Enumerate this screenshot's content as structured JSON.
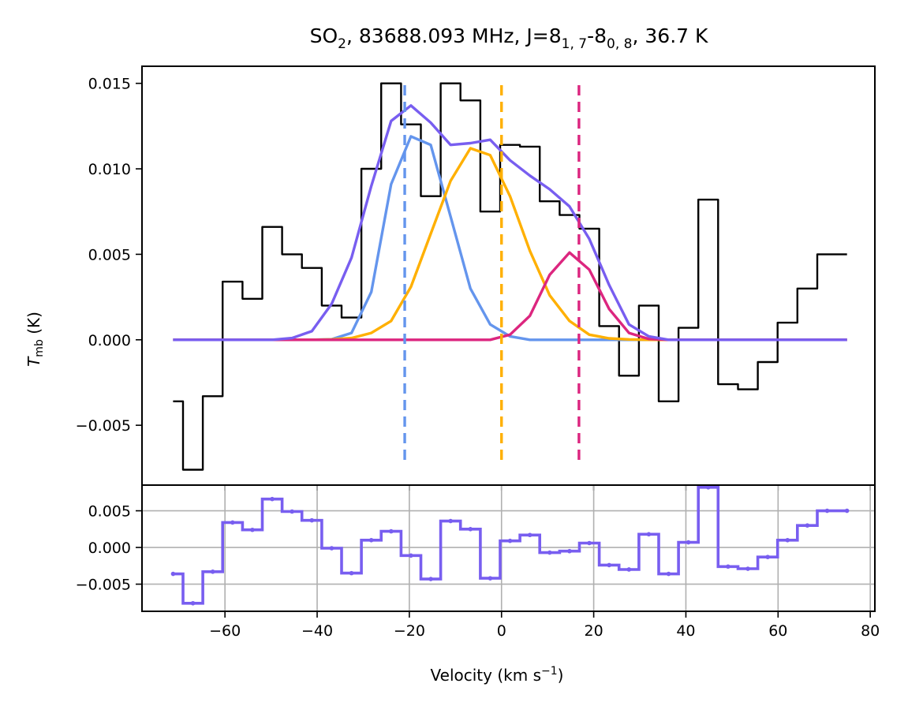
{
  "chart_data": [
    {
      "panel": "spectrum",
      "type": "line",
      "title": {
        "species": "SO",
        "species_sub": "2",
        "rest": ", 83688.093 MHz, J=8",
        "upper_sub": "1, 7",
        "dash": "-8",
        "lower_sub": "0, 8",
        "temperature": ", 36.7 K"
      },
      "ylabel": {
        "main": "T",
        "sub": "mb",
        "unit": " (K)"
      },
      "xlim": [
        -78,
        81
      ],
      "ylim": [
        -0.0085,
        0.016
      ],
      "x_ticks": [
        -60,
        -40,
        -20,
        0,
        20,
        40,
        60,
        80
      ],
      "y_ticks": [
        -0.005,
        0.0,
        0.005,
        0.01,
        0.015
      ],
      "y_tick_labels": [
        "−0.005",
        "0.000",
        "0.005",
        "0.010",
        "0.015"
      ],
      "grid": false,
      "velocity": [
        -71.25,
        -66.95,
        -62.65,
        -58.35,
        -54.05,
        -49.75,
        -45.45,
        -41.15,
        -36.85,
        -32.55,
        -28.25,
        -23.95,
        -19.65,
        -15.35,
        -11.05,
        -6.75,
        -2.45,
        1.85,
        6.15,
        10.45,
        14.75,
        19.05,
        23.35,
        27.65,
        31.95,
        36.25,
        40.55,
        44.85,
        49.15,
        53.45,
        57.75,
        62.05,
        66.35,
        70.65,
        74.95
      ],
      "series": [
        {
          "name": "observed spectrum",
          "style": "steps",
          "color": "#000000",
          "values": [
            -0.0036,
            -0.0076,
            -0.0033,
            0.0034,
            0.0024,
            0.0066,
            0.005,
            0.0042,
            0.002,
            0.0013,
            0.01,
            0.015,
            0.0126,
            0.0084,
            0.015,
            0.014,
            0.0075,
            0.0114,
            0.0113,
            0.0081,
            0.0073,
            0.0065,
            0.0008,
            -0.0021,
            0.002,
            -0.0036,
            0.0007,
            0.0082,
            -0.0026,
            -0.0029,
            -0.0013,
            0.001,
            0.003,
            0.005,
            0.005
          ]
        },
        {
          "name": "component 1 fit",
          "color": "#6495ed",
          "values": [
            0,
            0,
            0,
            0,
            0,
            0,
            0,
            0,
            3e-05,
            0.0004,
            0.0028,
            0.0091,
            0.0119,
            0.0114,
            0.0072,
            0.003,
            0.0009,
            0.0002,
            0,
            0,
            0,
            0,
            0,
            0,
            0,
            0,
            0,
            0,
            0,
            0,
            0,
            0,
            0,
            0,
            0
          ]
        },
        {
          "name": "component 2 fit",
          "color": "#ffb000",
          "values": [
            0,
            0,
            0,
            0,
            0,
            0,
            0,
            0,
            2e-05,
            0.0001,
            0.0004,
            0.0011,
            0.0031,
            0.0062,
            0.0093,
            0.0112,
            0.0108,
            0.0084,
            0.0052,
            0.0026,
            0.0011,
            0.0003,
            8e-05,
            2e-05,
            0,
            0,
            0,
            0,
            0,
            0,
            0,
            0,
            0,
            0,
            0
          ]
        },
        {
          "name": "component 3 fit",
          "color": "#dc267f",
          "values": [
            0,
            0,
            0,
            0,
            0,
            0,
            0,
            0,
            0,
            0,
            0,
            0,
            0,
            0,
            0,
            0,
            0,
            0.0003,
            0.0014,
            0.0038,
            0.0051,
            0.0041,
            0.0018,
            0.0004,
            5e-05,
            0,
            0,
            0,
            0,
            0,
            0,
            0,
            0,
            0,
            0
          ]
        },
        {
          "name": "total fit",
          "color": "#785ef0",
          "values": [
            0,
            0,
            0,
            0,
            0,
            0,
            0.0001,
            0.0005,
            0.0021,
            0.0048,
            0.009,
            0.0128,
            0.0137,
            0.0127,
            0.0114,
            0.0115,
            0.0117,
            0.0105,
            0.0096,
            0.0088,
            0.0078,
            0.0059,
            0.0032,
            0.0009,
            0.0002,
            0,
            0,
            0,
            0,
            0,
            0,
            0,
            0,
            0,
            0
          ]
        }
      ],
      "vertical_lines": [
        {
          "name": "component 1 velocity",
          "x": -21,
          "color": "#6495ed"
        },
        {
          "name": "component 2 velocity",
          "x": 0,
          "color": "#ffb000"
        },
        {
          "name": "component 3 velocity",
          "x": 16.8,
          "color": "#dc267f"
        }
      ]
    },
    {
      "panel": "residuals",
      "type": "line",
      "xlabel": {
        "main": "Velocity (km s",
        "sup": "−1",
        "close": ")"
      },
      "x_tick_labels": [
        "−60",
        "−40",
        "−20",
        "0",
        "20",
        "40",
        "60",
        "80"
      ],
      "xlim": [
        -78,
        81
      ],
      "ylim": [
        -0.0087,
        0.0085
      ],
      "x_ticks": [
        -60,
        -40,
        -20,
        0,
        20,
        40,
        60,
        80
      ],
      "y_ticks": [
        -0.005,
        0.0,
        0.005
      ],
      "y_tick_labels": [
        "−0.005",
        "0.000",
        "0.005"
      ],
      "grid": true,
      "series": [
        {
          "name": "residual",
          "style": "steps",
          "color": "#785ef0",
          "values": [
            -0.0036,
            -0.0076,
            -0.0033,
            0.0034,
            0.0024,
            0.0066,
            0.0049,
            0.0037,
            -0.0001,
            -0.0035,
            0.001,
            0.0022,
            -0.0011,
            -0.0043,
            0.0036,
            0.0025,
            -0.0042,
            0.0009,
            0.0017,
            -0.0007,
            -0.0005,
            0.0006,
            -0.0024,
            -0.003,
            0.0018,
            -0.0036,
            0.0007,
            0.0082,
            -0.0026,
            -0.0029,
            -0.0013,
            0.001,
            0.003,
            0.005,
            0.005
          ]
        }
      ]
    }
  ]
}
